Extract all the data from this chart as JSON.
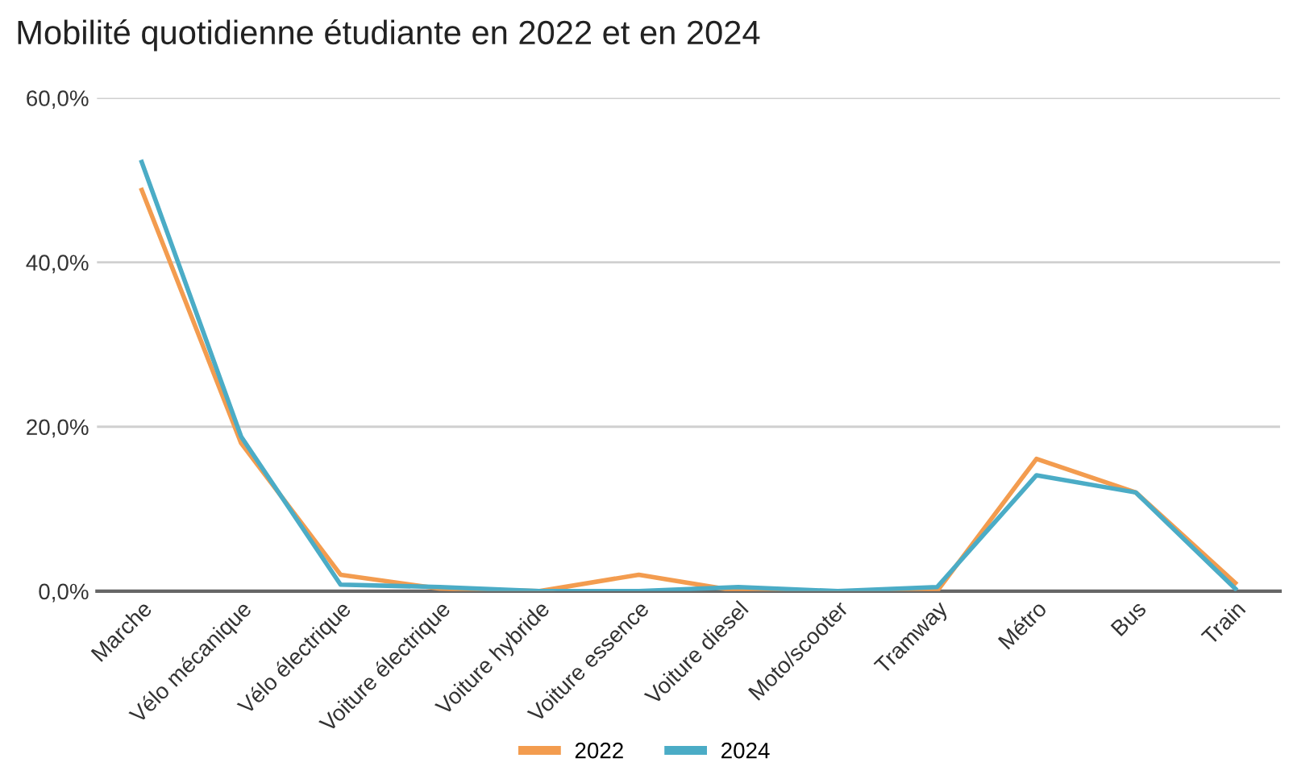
{
  "chart_data": {
    "type": "line",
    "title": "Mobilité quotidienne étudiante en 2022 et en 2024",
    "categories": [
      "Marche",
      "Vélo mécanique",
      "Vélo électrique",
      "Voiture électrique",
      "Voiture hybride",
      "Voiture essence",
      "Voiture diesel",
      "Moto/scooter",
      "Tramway",
      "Métro",
      "Bus",
      "Train"
    ],
    "series": [
      {
        "name": "2022",
        "color": "#f39c4f",
        "values": [
          48.8,
          18.0,
          2.0,
          0.3,
          0,
          2.0,
          0,
          0,
          0,
          16.1,
          12.0,
          1.0
        ]
      },
      {
        "name": "2024",
        "color": "#4bacc6",
        "values": [
          52.2,
          18.8,
          0.8,
          0.5,
          0,
          0,
          0.5,
          0,
          0.5,
          14.1,
          12.0,
          0.3
        ]
      }
    ],
    "ylim": [
      0,
      60
    ],
    "yticks": [
      {
        "value": 0,
        "label": "0,0%"
      },
      {
        "value": 20,
        "label": "20,0%"
      },
      {
        "value": 40,
        "label": "40,0%"
      },
      {
        "value": 60,
        "label": "60,0%"
      }
    ],
    "grid": "y",
    "legend": "bottom",
    "marker": "none",
    "line_style": "solid"
  }
}
